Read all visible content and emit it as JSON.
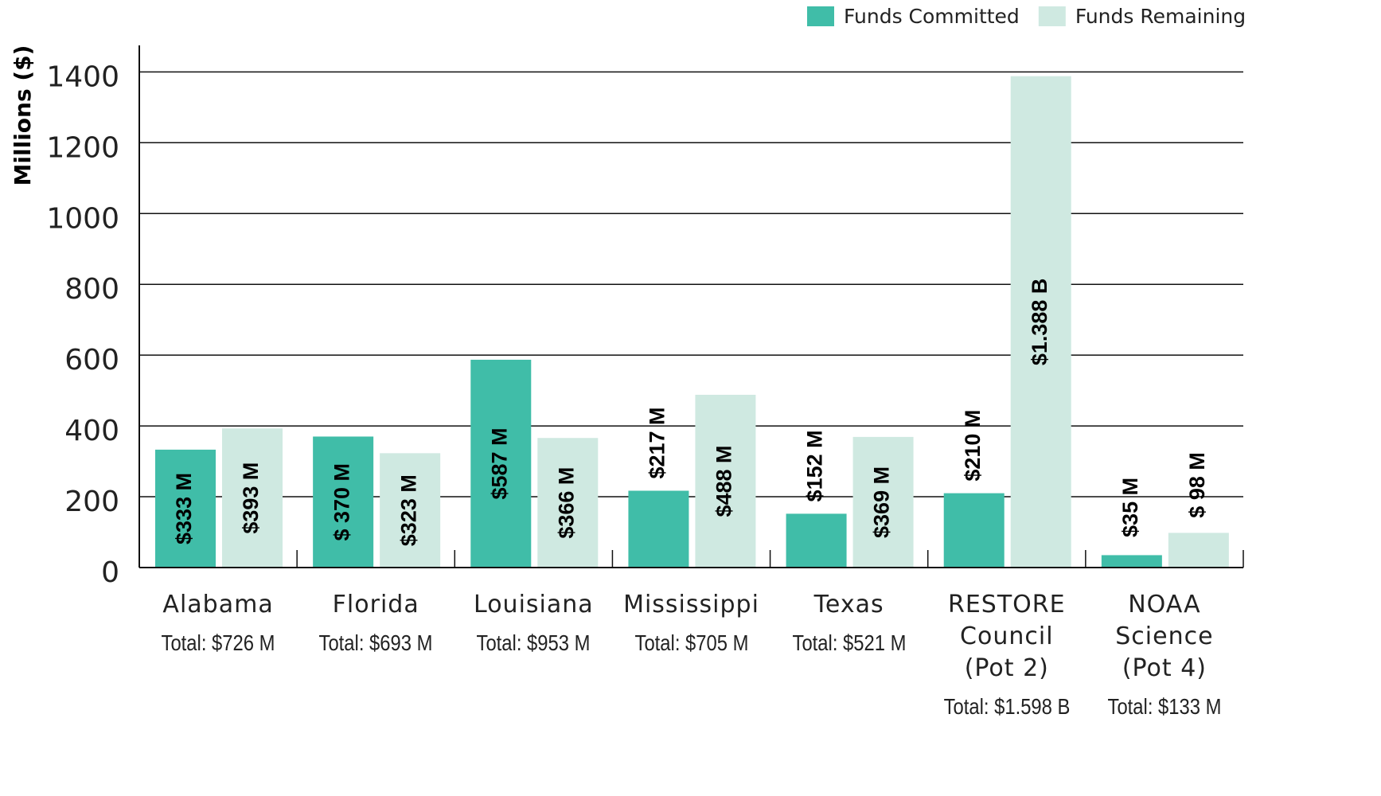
{
  "chart_data": {
    "type": "bar",
    "y_label": "Millions ($)",
    "categories": [
      "Alabama",
      "Florida",
      "Louisiana",
      "Mississippi",
      "Texas",
      "RESTORE Council (Pot 2)",
      "NOAA Science (Pot 4)"
    ],
    "totals": [
      "Total: $726 M",
      "Total: $693 M",
      "Total: $953 M",
      "Total: $705 M",
      "Total: $521 M",
      "Total: $1.598 B",
      "Total: $133 M"
    ],
    "series": [
      {
        "name": "Funds Committed",
        "color": "#40bda8",
        "values": [
          333,
          370,
          587,
          217,
          152,
          210,
          35
        ],
        "value_labels": [
          "$333 M",
          "$ 370 M",
          "$587 M",
          "$217 M",
          "$152 M",
          "$210 M",
          "$35 M"
        ]
      },
      {
        "name": "Funds Remaining",
        "color": "#cfe9e1",
        "values": [
          393,
          323,
          366,
          488,
          369,
          1388,
          98
        ],
        "value_labels": [
          "$393 M",
          "$323 M",
          "$366 M",
          "$488 M",
          "$369 M",
          "$1.388 B",
          "$ 98 M"
        ]
      }
    ],
    "ylim": [
      0,
      1475
    ],
    "yticks": [
      0,
      200,
      400,
      600,
      800,
      1000,
      1200,
      1400
    ],
    "grid": true,
    "legend": "top-right"
  }
}
